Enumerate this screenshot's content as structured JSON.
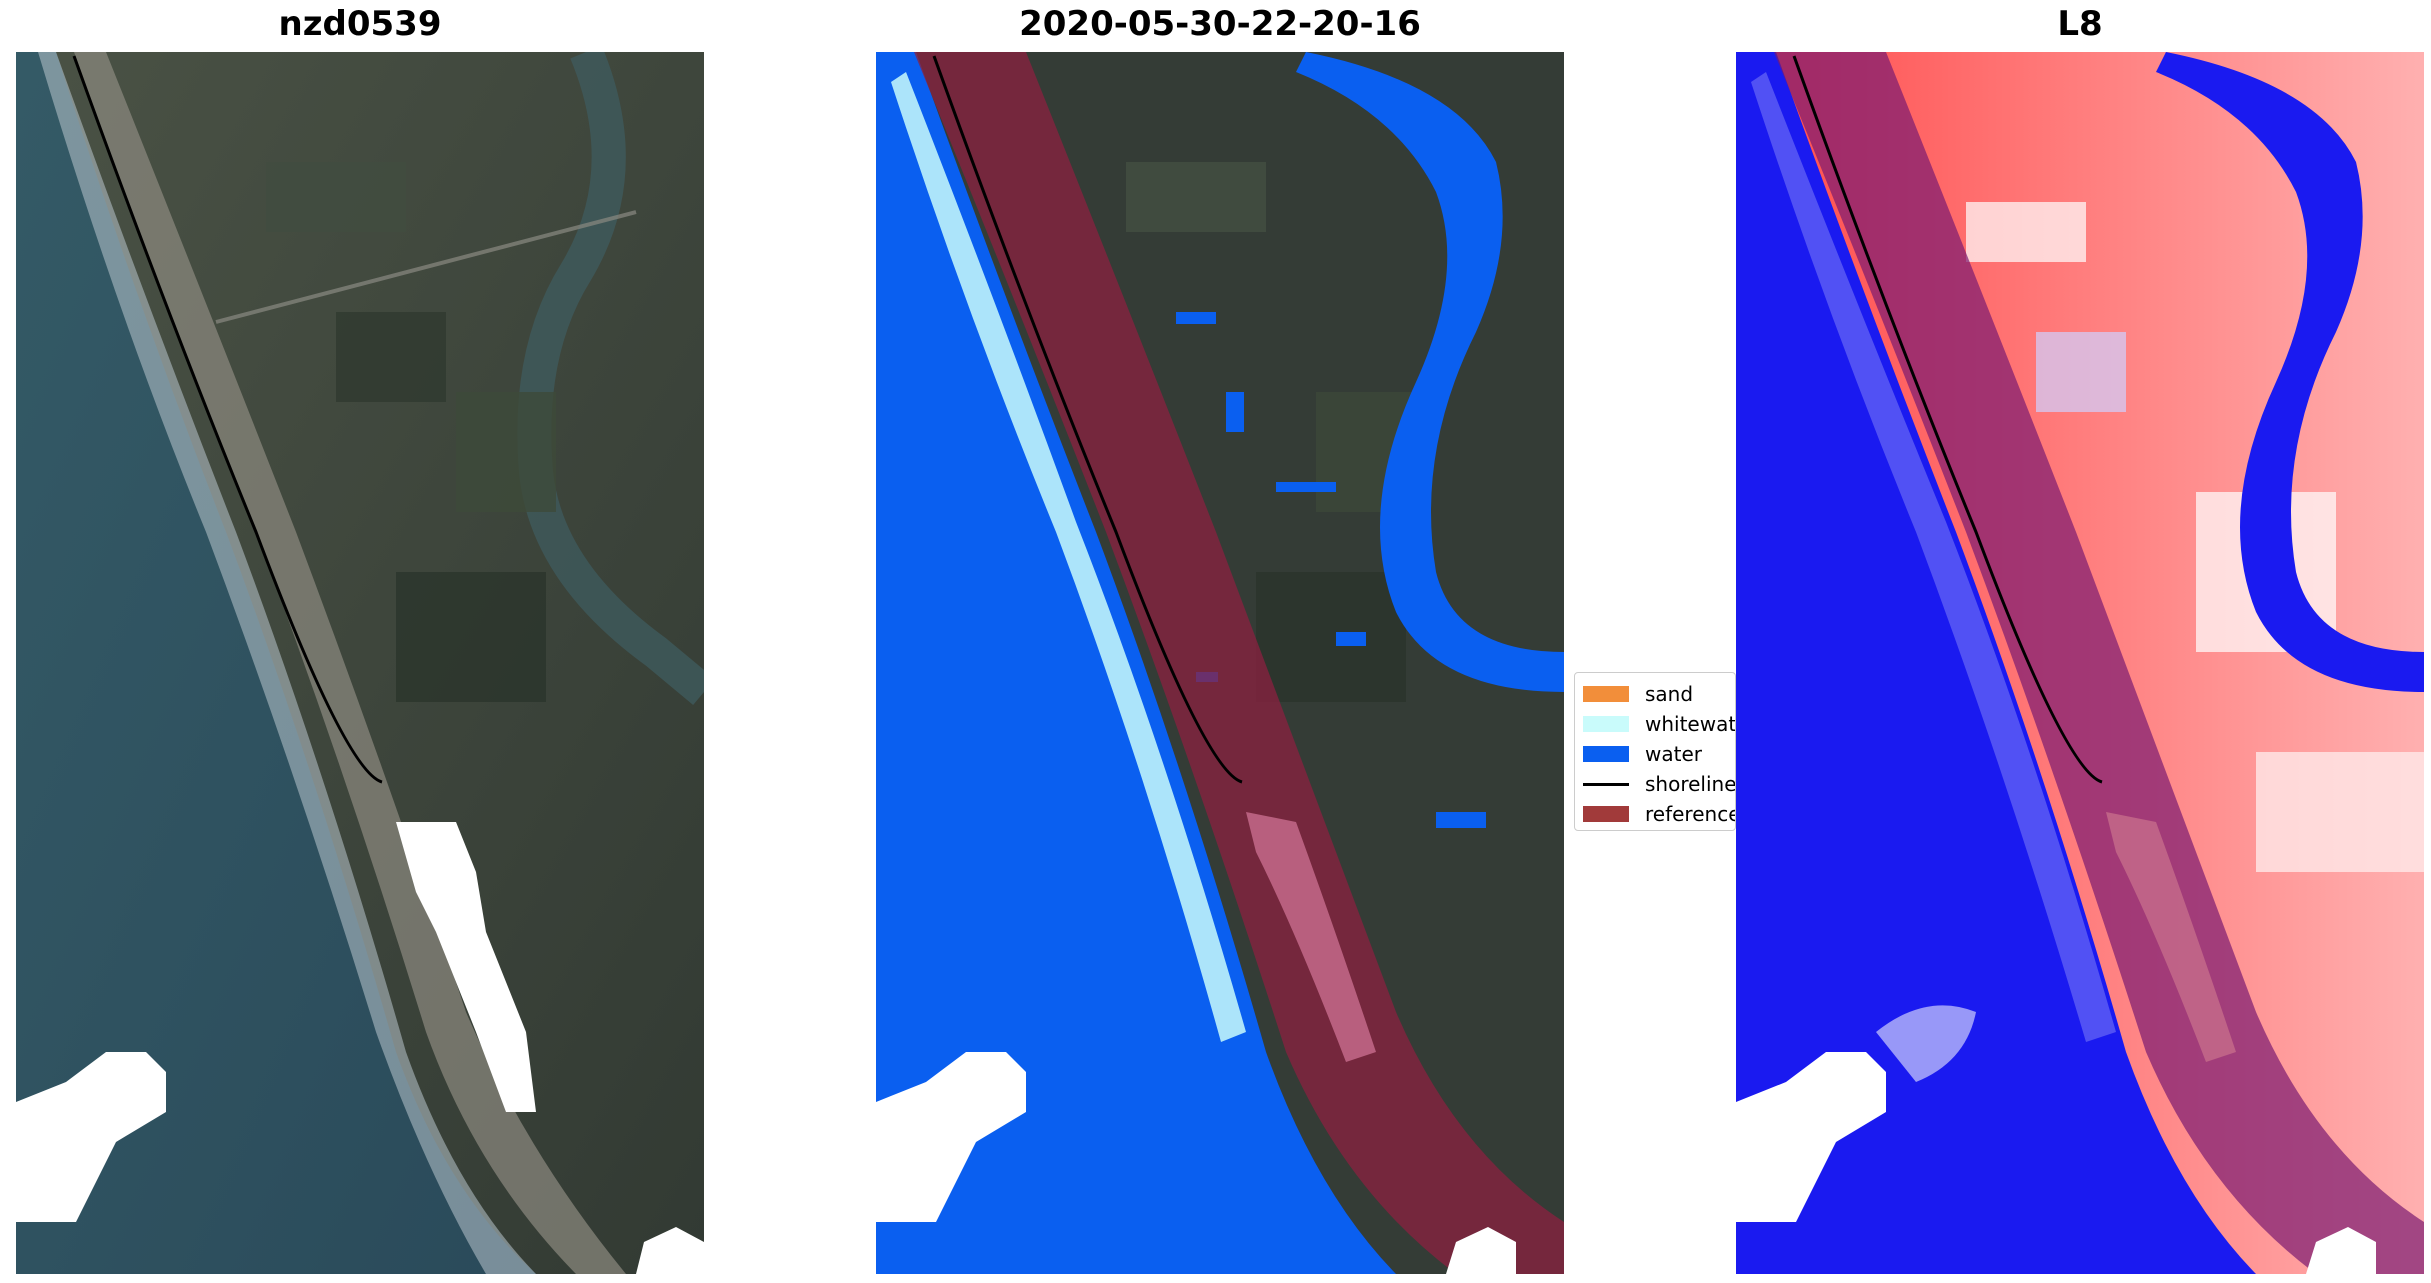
{
  "panels": [
    {
      "title": "nzd0539",
      "image": "rgb-composite-map"
    },
    {
      "title": "2020-05-30-22-20-16",
      "image": "classification-map"
    },
    {
      "title": "L8",
      "image": "water-index-map"
    }
  ],
  "legend": {
    "items": [
      {
        "label": "sand",
        "color": "#f28e3a",
        "icon": "sand-swatch"
      },
      {
        "label": "whitewater",
        "color": "#c9fbfb",
        "icon": "whitewater-swatch"
      },
      {
        "label": "water",
        "color": "#0a5ff0",
        "icon": "water-swatch"
      },
      {
        "label": "shoreline",
        "color": "#000000",
        "icon": "shoreline-line"
      },
      {
        "label": "reference",
        "color": "#a13a3a",
        "icon": "reference-swatch"
      }
    ]
  },
  "colors": {
    "ocean": "#2f4f60",
    "land": "#3a4438",
    "water_class": "#0a5ff0",
    "reference_buffer": "#8b2040",
    "index_high": "#ff3030",
    "index_low": "#1a1af0"
  }
}
